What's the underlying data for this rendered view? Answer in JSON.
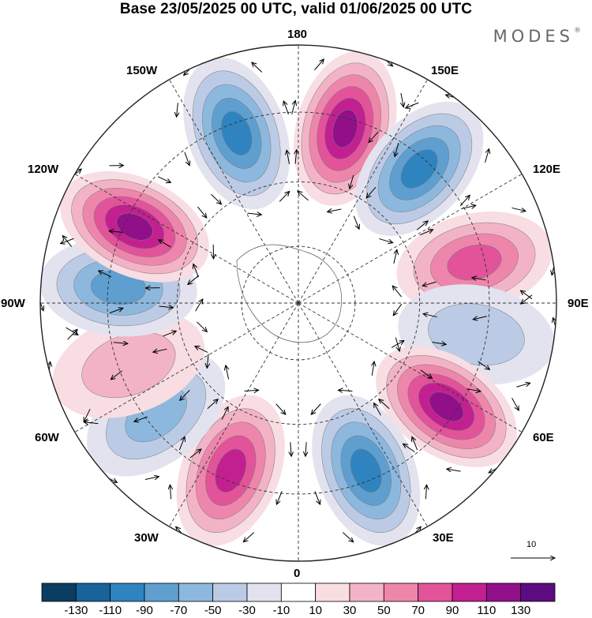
{
  "header": {
    "title": "Base 23/05/2025 00 UTC, valid 01/06/2025 00 UTC",
    "brand": "MODES",
    "brand_mark": "®"
  },
  "map": {
    "projection": "north polar stereographic",
    "longitude_labels": {
      "lon_0": "0",
      "lon_30e": "30E",
      "lon_60e": "60E",
      "lon_90e": "90E",
      "lon_120e": "120E",
      "lon_150e": "150E",
      "lon_180": "180",
      "lon_150w": "150W",
      "lon_120w": "120W",
      "lon_90w": "90W",
      "lon_60w": "60W",
      "lon_30w": "30W"
    },
    "anomaly_centers": [
      {
        "lon": 165,
        "sign": "positive",
        "peak": 120
      },
      {
        "lon": 138,
        "sign": "negative",
        "peak": -95
      },
      {
        "lon": 103,
        "sign": "positive",
        "peak": 70
      },
      {
        "lon": 80,
        "sign": "negative",
        "peak": -40
      },
      {
        "lon": 55,
        "sign": "positive",
        "peak": 110
      },
      {
        "lon": 22,
        "sign": "negative",
        "peak": -100
      },
      {
        "lon": -22,
        "sign": "positive",
        "peak": 95
      },
      {
        "lon": -52,
        "sign": "negative",
        "peak": -60
      },
      {
        "lon": -70,
        "sign": "positive",
        "peak": 35
      },
      {
        "lon": -95,
        "sign": "negative",
        "peak": -80
      },
      {
        "lon": -115,
        "sign": "positive",
        "peak": 110
      },
      {
        "lon": -160,
        "sign": "negative",
        "peak": -100
      }
    ],
    "vector_scale_label": "10"
  },
  "colorbar": {
    "tick_labels": [
      "-130",
      "-110",
      "-90",
      "-70",
      "-50",
      "-30",
      "-10",
      "10",
      "30",
      "50",
      "70",
      "90",
      "110",
      "130"
    ],
    "colors": [
      "#0b3d62",
      "#17639a",
      "#2f84bf",
      "#5e9fd0",
      "#8db8de",
      "#bccbe5",
      "#e3e3f0",
      "#ffffff",
      "#f8dde3",
      "#f3b3c6",
      "#ee86ac",
      "#e2539a",
      "#c22090",
      "#91108a",
      "#5d0b80"
    ]
  }
}
